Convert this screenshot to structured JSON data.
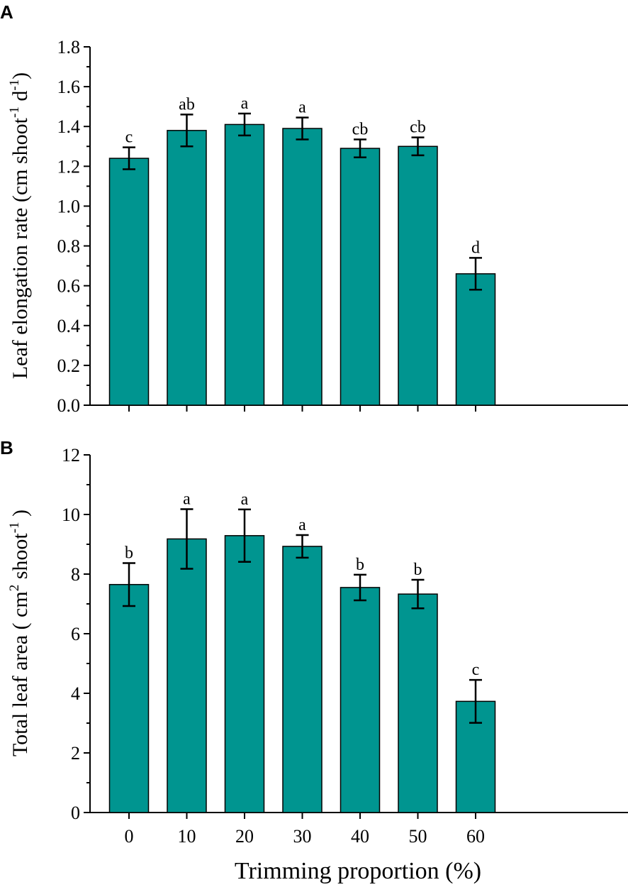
{
  "figure": {
    "xlabel": "Trimming proportion (%)"
  },
  "chart_data": [
    {
      "panel": "A",
      "type": "bar",
      "categories": [
        "0",
        "10",
        "20",
        "30",
        "40",
        "50",
        "60"
      ],
      "values": [
        1.24,
        1.38,
        1.41,
        1.39,
        1.29,
        1.3,
        0.66
      ],
      "errors": [
        0.055,
        0.08,
        0.055,
        0.055,
        0.045,
        0.045,
        0.08
      ],
      "significance": [
        "c",
        "ab",
        "a",
        "a",
        "cb",
        "cb",
        "d"
      ],
      "ylabel": {
        "text": "Leaf elongation rate (cm shoot",
        "sup1": "-1",
        "mid": " d",
        "sup2": "-1",
        "end": ")"
      },
      "ylim": [
        0,
        1.8
      ],
      "yticks": [
        "0.0",
        "0.2",
        "0.4",
        "0.6",
        "0.8",
        "1.0",
        "1.2",
        "1.4",
        "1.6",
        "1.8"
      ],
      "bar_color": "#009590"
    },
    {
      "panel": "B",
      "type": "bar",
      "categories": [
        "0",
        "10",
        "20",
        "30",
        "40",
        "50",
        "60"
      ],
      "values": [
        7.65,
        9.18,
        9.29,
        8.93,
        7.55,
        7.33,
        3.73
      ],
      "errors": [
        0.72,
        1.0,
        0.88,
        0.38,
        0.43,
        0.48,
        0.72
      ],
      "significance": [
        "b",
        "a",
        "a",
        "a",
        "b",
        "b",
        "c"
      ],
      "ylabel": {
        "text": "Total leaf area ( cm",
        "sup1": "2",
        "mid": " shoot",
        "sup2": "-1",
        "end": " )"
      },
      "ylim": [
        0,
        12
      ],
      "yticks": [
        "0",
        "2",
        "4",
        "6",
        "8",
        "10",
        "12"
      ],
      "bar_color": "#009590"
    }
  ]
}
